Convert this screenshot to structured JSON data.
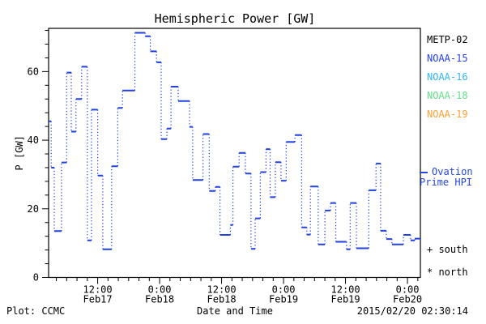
{
  "legend": {
    "satellites": [
      {
        "label": "METP-02",
        "color": "#000000"
      },
      {
        "label": "NOAA-15",
        "color": "#2541f0"
      },
      {
        "label": "NOAA-16",
        "color": "#2fb6f5"
      },
      {
        "label": "NOAA-18",
        "color": "#63de8a"
      },
      {
        "label": "NOAA-19",
        "color": "#ffa033"
      }
    ],
    "model": {
      "line1": "Ovation",
      "line2": "Prime HPI",
      "color": "#2547e0"
    },
    "south": "+ south",
    "north": "* north"
  },
  "footer": {
    "left": "Plot: CCMC",
    "right": "2015/02/20 02:30:14"
  },
  "chart_data": {
    "type": "line",
    "subtype": "step-dotted",
    "title": "Hemispheric Power [GW]",
    "xlabel": "Date and Time",
    "ylabel": "P [GW]",
    "ylim": [
      0,
      72.6
    ],
    "y_ticks": [
      0,
      20,
      40,
      60
    ],
    "y_minor_step": 4,
    "grid": "off",
    "legend_position": "right",
    "x_range_hours": [
      2.5,
      74.5
    ],
    "x_hours_reference": "hours since Feb17 00:00",
    "x_minor_step_hours": 2,
    "x_ticks": [
      {
        "t": 12,
        "time": "12:00",
        "date": "Feb17"
      },
      {
        "t": 24,
        "time": "0:00",
        "date": "Feb18"
      },
      {
        "t": 36,
        "time": "12:00",
        "date": "Feb18"
      },
      {
        "t": 48,
        "time": "0:00",
        "date": "Feb19"
      },
      {
        "t": 60,
        "time": "12:00",
        "date": "Feb19"
      },
      {
        "t": 72,
        "time": "0:00",
        "date": "Feb20"
      }
    ],
    "series": [
      {
        "name": "Ovation Prime HPI",
        "color": "#2142e0",
        "points": [
          [
            2.5,
            45.5
          ],
          [
            3.0,
            32.0
          ],
          [
            3.6,
            13.5
          ],
          [
            5.0,
            33.5
          ],
          [
            6.0,
            59.7
          ],
          [
            6.9,
            42.5
          ],
          [
            7.8,
            52.0
          ],
          [
            8.9,
            61.4
          ],
          [
            10.0,
            10.8
          ],
          [
            10.8,
            48.9
          ],
          [
            12.0,
            29.7
          ],
          [
            13.0,
            8.2
          ],
          [
            14.7,
            32.4
          ],
          [
            15.9,
            49.4
          ],
          [
            16.8,
            54.5
          ],
          [
            19.2,
            71.3
          ],
          [
            21.2,
            70.3
          ],
          [
            22.2,
            65.9
          ],
          [
            23.4,
            62.7
          ],
          [
            24.3,
            40.3
          ],
          [
            25.4,
            43.4
          ],
          [
            26.2,
            55.6
          ],
          [
            27.6,
            51.4
          ],
          [
            29.8,
            43.9
          ],
          [
            30.4,
            28.4
          ],
          [
            32.4,
            41.8
          ],
          [
            33.6,
            25.2
          ],
          [
            34.8,
            26.4
          ],
          [
            35.7,
            12.4
          ],
          [
            37.7,
            15.3
          ],
          [
            38.2,
            32.3
          ],
          [
            39.4,
            36.3
          ],
          [
            40.6,
            30.3
          ],
          [
            41.7,
            8.3
          ],
          [
            42.5,
            17.2
          ],
          [
            43.5,
            30.7
          ],
          [
            44.6,
            37.4
          ],
          [
            45.4,
            23.4
          ],
          [
            46.4,
            33.6
          ],
          [
            47.5,
            28.2
          ],
          [
            48.5,
            39.5
          ],
          [
            50.2,
            41.5
          ],
          [
            51.5,
            14.6
          ],
          [
            52.5,
            12.5
          ],
          [
            53.2,
            26.5
          ],
          [
            54.7,
            9.6
          ],
          [
            56.0,
            19.5
          ],
          [
            57.1,
            21.7
          ],
          [
            58.1,
            10.4
          ],
          [
            60.2,
            8.2
          ],
          [
            60.9,
            21.7
          ],
          [
            62.1,
            8.5
          ],
          [
            64.5,
            25.4
          ],
          [
            65.9,
            33.2
          ],
          [
            66.8,
            13.6
          ],
          [
            67.9,
            11.2
          ],
          [
            69.0,
            9.6
          ],
          [
            71.2,
            12.4
          ],
          [
            72.6,
            10.8
          ],
          [
            73.4,
            11.3
          ]
        ]
      }
    ]
  }
}
